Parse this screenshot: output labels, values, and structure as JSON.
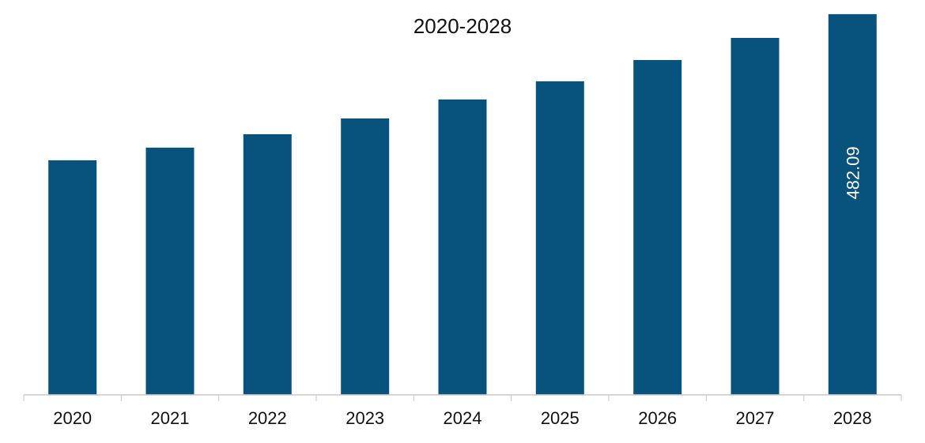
{
  "chart_data": {
    "type": "bar",
    "title": "2020-2028",
    "categories": [
      "2020",
      "2021",
      "2022",
      "2023",
      "2024",
      "2025",
      "2026",
      "2027",
      "2028"
    ],
    "values": [
      297,
      313,
      330,
      350,
      374,
      397,
      424,
      452,
      482.09
    ],
    "data_labels": [
      "",
      "",
      "",
      "",
      "",
      "",
      "",
      "",
      "482.09"
    ],
    "xlabel": "",
    "ylabel": "",
    "ylim": [
      0,
      500
    ],
    "grid": false,
    "legend": "none",
    "colors": {
      "bar": "#08527e",
      "axis": "#c8c8c8",
      "label_text": "#ffffff"
    }
  }
}
